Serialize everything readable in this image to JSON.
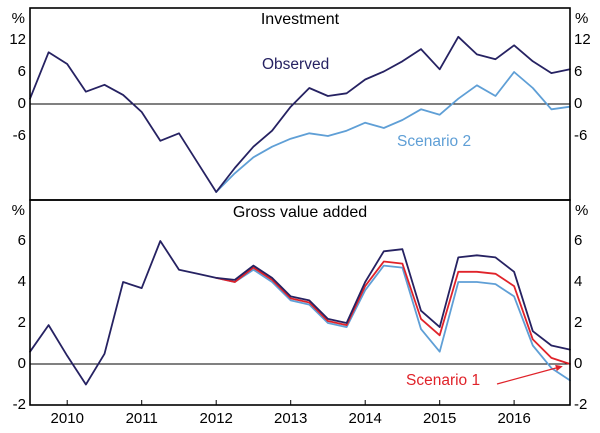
{
  "figure": {
    "kind": "two-panel quarterly time-series chart",
    "frame_color": "#000000",
    "background": "#ffffff"
  },
  "chart_data": [
    {
      "type": "line",
      "title": "Investment",
      "unit": "%",
      "ylim": [
        -18,
        18
      ],
      "yticks": [
        12,
        6,
        0,
        -6
      ],
      "x_start": 2009.5,
      "x_step": 0.25,
      "x_end": 2016.75,
      "xtick_years": [
        2010,
        2011,
        2012,
        2013,
        2014,
        2015,
        2016
      ],
      "xtick_labels": [
        "2010",
        "2011",
        "2012",
        "2013",
        "2014",
        "2015",
        "2016"
      ],
      "grid": "zero-line-only",
      "legend_position": "inline-annotations",
      "series": [
        {
          "name": "Observed",
          "color": "#262262",
          "values": [
            1.0,
            9.7,
            7.5,
            2.3,
            3.6,
            1.7,
            -1.5,
            -6.9,
            -5.5,
            -11.0,
            -16.5,
            -12.0,
            -8.0,
            -5.0,
            -0.5,
            3.0,
            1.5,
            2.0,
            4.6,
            6.1,
            8.0,
            10.3,
            6.5,
            12.6,
            9.3,
            8.4,
            11.0,
            8.0,
            5.8,
            6.5
          ]
        },
        {
          "name": "Scenario 2",
          "color": "#5f9fd6",
          "values": [
            null,
            null,
            null,
            null,
            null,
            null,
            null,
            null,
            null,
            null,
            -16.5,
            -13.0,
            -10.0,
            -8.0,
            -6.5,
            -5.5,
            -6.0,
            -5.0,
            -3.5,
            -4.5,
            -3.0,
            -1.0,
            -2.0,
            1.0,
            3.5,
            1.5,
            6.0,
            3.0,
            -1.0,
            -0.5
          ]
        }
      ]
    },
    {
      "type": "line",
      "title": "Gross value added",
      "unit": "%",
      "ylim": [
        -2,
        8
      ],
      "yticks": [
        6,
        4,
        2,
        0,
        -2
      ],
      "x_start": 2009.5,
      "x_step": 0.25,
      "x_end": 2016.75,
      "xtick_years": [
        2010,
        2011,
        2012,
        2013,
        2014,
        2015,
        2016
      ],
      "xtick_labels": [
        "2010",
        "2011",
        "2012",
        "2013",
        "2014",
        "2015",
        "2016"
      ],
      "grid": "zero-line-only",
      "legend_position": "inline-annotations",
      "series": [
        {
          "name": "Observed",
          "color": "#262262",
          "values": [
            0.6,
            1.9,
            0.4,
            -1.0,
            0.5,
            4.0,
            3.7,
            6.0,
            4.6,
            4.4,
            4.2,
            4.1,
            4.8,
            4.2,
            3.3,
            3.1,
            2.2,
            2.0,
            4.0,
            5.5,
            5.6,
            2.6,
            1.8,
            5.2,
            5.3,
            5.2,
            4.5,
            1.6,
            0.9,
            0.7
          ]
        },
        {
          "name": "Scenario 1",
          "color": "#e0232a",
          "values": [
            null,
            null,
            null,
            null,
            null,
            null,
            null,
            null,
            null,
            null,
            4.2,
            4.0,
            4.7,
            4.1,
            3.2,
            3.0,
            2.1,
            1.9,
            3.8,
            5.0,
            4.9,
            2.2,
            1.4,
            4.5,
            4.5,
            4.4,
            3.8,
            1.2,
            0.3,
            0.0
          ]
        },
        {
          "name": "Scenario 2",
          "color": "#5f9fd6",
          "values": [
            null,
            null,
            null,
            null,
            null,
            null,
            null,
            null,
            null,
            null,
            4.2,
            4.0,
            4.6,
            4.0,
            3.1,
            2.9,
            2.0,
            1.8,
            3.6,
            4.8,
            4.7,
            1.7,
            0.6,
            4.0,
            4.0,
            3.9,
            3.3,
            0.9,
            -0.2,
            -0.8
          ]
        }
      ]
    }
  ]
}
